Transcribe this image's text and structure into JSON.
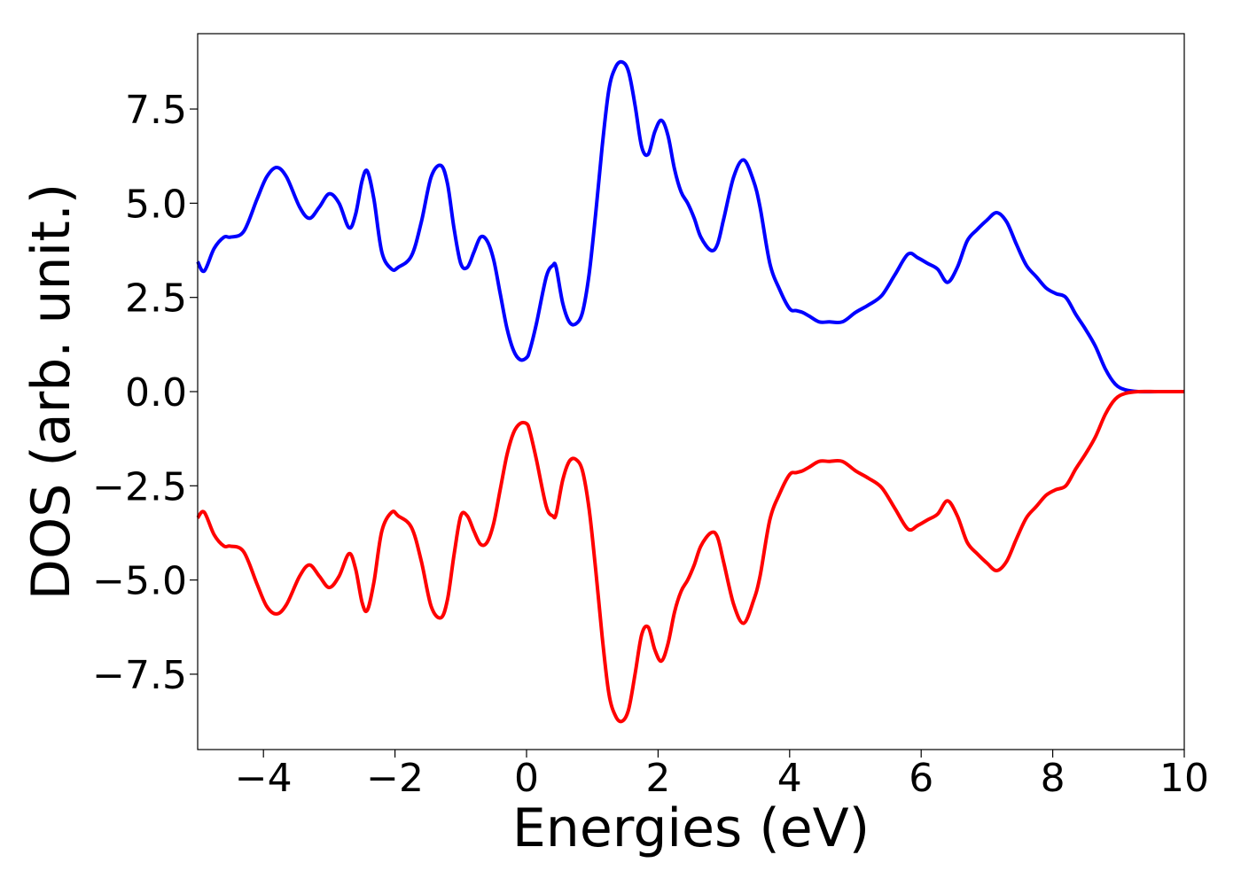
{
  "chart_data": {
    "type": "line",
    "title": "",
    "xlabel": "Energies (eV)",
    "ylabel": "DOS (arb. unit.)",
    "xlim": [
      -5,
      10
    ],
    "ylim": [
      -9.5,
      9.5
    ],
    "xticks": [
      -4,
      -2,
      0,
      2,
      4,
      6,
      8,
      10
    ],
    "xtick_labels": [
      "−4",
      "−2",
      "0",
      "2",
      "4",
      "6",
      "8",
      "10"
    ],
    "yticks": [
      7.5,
      5.0,
      2.5,
      0.0,
      -2.5,
      -5.0,
      -7.5
    ],
    "ytick_labels": [
      "7.5",
      "5.0",
      "2.5",
      "0.0",
      "−2.5",
      "−5.0",
      "−7.5"
    ],
    "grid": false,
    "legend": "none",
    "series": [
      {
        "color": "#0000ff",
        "x": [
          -5.0,
          -4.9,
          -4.75,
          -4.6,
          -4.5,
          -4.3,
          -4.1,
          -3.95,
          -3.8,
          -3.65,
          -3.45,
          -3.3,
          -3.15,
          -3.0,
          -2.85,
          -2.7,
          -2.6,
          -2.5,
          -2.42,
          -2.32,
          -2.2,
          -2.05,
          -1.95,
          -1.75,
          -1.6,
          -1.45,
          -1.3,
          -1.2,
          -1.1,
          -1.0,
          -0.9,
          -0.8,
          -0.7,
          -0.6,
          -0.5,
          -0.4,
          -0.3,
          -0.2,
          -0.1,
          0.0,
          0.05,
          0.15,
          0.3,
          0.4,
          0.45,
          0.55,
          0.65,
          0.75,
          0.85,
          0.95,
          1.05,
          1.15,
          1.25,
          1.35,
          1.45,
          1.55,
          1.65,
          1.75,
          1.85,
          1.95,
          2.05,
          2.15,
          2.25,
          2.35,
          2.45,
          2.55,
          2.65,
          2.8,
          2.9,
          3.0,
          3.15,
          3.3,
          3.45,
          3.55,
          3.7,
          3.85,
          4.0,
          4.1,
          4.2,
          4.3,
          4.45,
          4.6,
          4.8,
          5.0,
          5.2,
          5.4,
          5.6,
          5.8,
          5.95,
          6.1,
          6.25,
          6.4,
          6.55,
          6.7,
          6.85,
          7.0,
          7.15,
          7.3,
          7.45,
          7.6,
          7.75,
          7.9,
          8.05,
          8.2,
          8.35,
          8.5,
          8.65,
          8.8,
          8.95,
          9.1,
          9.3,
          9.6,
          10.0
        ],
        "y": [
          3.45,
          3.2,
          3.8,
          4.1,
          4.1,
          4.25,
          5.1,
          5.7,
          5.95,
          5.7,
          4.9,
          4.6,
          4.9,
          5.25,
          5.0,
          4.35,
          4.7,
          5.6,
          5.85,
          5.1,
          3.7,
          3.25,
          3.3,
          3.6,
          4.5,
          5.7,
          6.0,
          5.5,
          4.3,
          3.4,
          3.3,
          3.7,
          4.1,
          4.0,
          3.5,
          2.6,
          1.7,
          1.1,
          0.85,
          0.9,
          1.1,
          1.8,
          3.05,
          3.35,
          3.3,
          2.35,
          1.85,
          1.8,
          2.1,
          3.1,
          4.7,
          6.5,
          8.0,
          8.6,
          8.75,
          8.5,
          7.6,
          6.5,
          6.3,
          6.9,
          7.2,
          6.8,
          5.9,
          5.3,
          5.0,
          4.6,
          4.1,
          3.75,
          3.9,
          4.6,
          5.7,
          6.15,
          5.6,
          4.9,
          3.4,
          2.7,
          2.2,
          2.15,
          2.1,
          2.0,
          1.85,
          1.85,
          1.85,
          2.1,
          2.3,
          2.55,
          3.1,
          3.65,
          3.55,
          3.4,
          3.25,
          2.9,
          3.3,
          4.0,
          4.3,
          4.55,
          4.75,
          4.5,
          3.9,
          3.35,
          3.05,
          2.75,
          2.6,
          2.5,
          2.05,
          1.65,
          1.2,
          0.6,
          0.2,
          0.05,
          0.0,
          0.0,
          0.0
        ]
      },
      {
        "color": "#ff0000",
        "x": [
          -5.0,
          -4.9,
          -4.75,
          -4.6,
          -4.5,
          -4.3,
          -4.1,
          -3.95,
          -3.8,
          -3.65,
          -3.45,
          -3.3,
          -3.15,
          -3.0,
          -2.85,
          -2.7,
          -2.6,
          -2.5,
          -2.42,
          -2.32,
          -2.2,
          -2.05,
          -1.95,
          -1.75,
          -1.6,
          -1.45,
          -1.3,
          -1.2,
          -1.1,
          -1.0,
          -0.9,
          -0.8,
          -0.7,
          -0.6,
          -0.5,
          -0.4,
          -0.3,
          -0.2,
          -0.1,
          0.0,
          0.05,
          0.15,
          0.3,
          0.4,
          0.45,
          0.55,
          0.65,
          0.75,
          0.85,
          0.95,
          1.05,
          1.15,
          1.25,
          1.35,
          1.45,
          1.55,
          1.65,
          1.75,
          1.85,
          1.95,
          2.05,
          2.15,
          2.25,
          2.35,
          2.45,
          2.55,
          2.65,
          2.8,
          2.9,
          3.0,
          3.15,
          3.3,
          3.45,
          3.55,
          3.7,
          3.85,
          4.0,
          4.1,
          4.2,
          4.3,
          4.45,
          4.6,
          4.8,
          5.0,
          5.2,
          5.4,
          5.6,
          5.8,
          5.95,
          6.1,
          6.25,
          6.4,
          6.55,
          6.7,
          6.85,
          7.0,
          7.15,
          7.3,
          7.45,
          7.6,
          7.75,
          7.9,
          8.05,
          8.2,
          8.35,
          8.5,
          8.65,
          8.8,
          8.95,
          9.1,
          9.3,
          9.6,
          10.0
        ],
        "y": [
          -3.35,
          -3.2,
          -3.8,
          -4.1,
          -4.1,
          -4.25,
          -5.1,
          -5.7,
          -5.9,
          -5.65,
          -4.9,
          -4.6,
          -4.9,
          -5.2,
          -4.9,
          -4.3,
          -4.7,
          -5.6,
          -5.8,
          -5.05,
          -3.7,
          -3.2,
          -3.3,
          -3.6,
          -4.5,
          -5.7,
          -6.0,
          -5.5,
          -4.3,
          -3.3,
          -3.3,
          -3.7,
          -4.05,
          -4.0,
          -3.5,
          -2.6,
          -1.7,
          -1.1,
          -0.85,
          -0.85,
          -1.05,
          -1.8,
          -3.05,
          -3.3,
          -3.25,
          -2.35,
          -1.85,
          -1.8,
          -2.1,
          -3.1,
          -4.7,
          -6.5,
          -8.0,
          -8.6,
          -8.75,
          -8.45,
          -7.5,
          -6.45,
          -6.25,
          -6.85,
          -7.15,
          -6.7,
          -5.85,
          -5.3,
          -5.0,
          -4.6,
          -4.1,
          -3.75,
          -3.85,
          -4.55,
          -5.65,
          -6.15,
          -5.55,
          -4.9,
          -3.4,
          -2.7,
          -2.2,
          -2.15,
          -2.1,
          -2.0,
          -1.85,
          -1.85,
          -1.85,
          -2.1,
          -2.3,
          -2.55,
          -3.1,
          -3.65,
          -3.55,
          -3.4,
          -3.25,
          -2.9,
          -3.3,
          -4.0,
          -4.3,
          -4.55,
          -4.75,
          -4.5,
          -3.9,
          -3.35,
          -3.05,
          -2.75,
          -2.6,
          -2.5,
          -2.05,
          -1.65,
          -1.2,
          -0.6,
          -0.2,
          -0.05,
          0.0,
          0.0,
          0.0
        ]
      }
    ]
  }
}
